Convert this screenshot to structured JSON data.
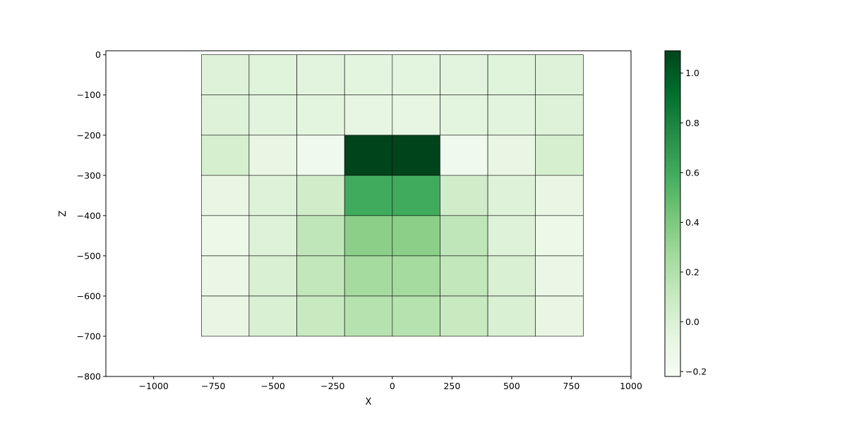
{
  "chart_data": {
    "type": "heatmap",
    "title": "",
    "xlabel": "X",
    "ylabel": "Z",
    "xlim": [
      -1200,
      1000
    ],
    "ylim": [
      -800,
      10
    ],
    "grid": false,
    "x_edges": [
      -800,
      -600,
      -400,
      -200,
      0,
      200,
      400,
      600,
      800
    ],
    "z_edges": [
      0,
      -100,
      -200,
      -300,
      -400,
      -500,
      -600,
      -700
    ],
    "x_ticks": [
      -1000,
      -750,
      -500,
      -250,
      0,
      250,
      500,
      750,
      1000
    ],
    "x_tick_labels": [
      "−1000",
      "−750",
      "−500",
      "−250",
      "0",
      "250",
      "500",
      "750",
      "1000"
    ],
    "y_ticks": [
      0,
      -100,
      -200,
      -300,
      -400,
      -500,
      -600,
      -700,
      -800
    ],
    "y_tick_labels": [
      "0",
      "−100",
      "−200",
      "−300",
      "−400",
      "−500",
      "−600",
      "−700",
      "−800"
    ],
    "values": [
      [
        -0.02,
        -0.03,
        -0.04,
        -0.05,
        -0.05,
        -0.04,
        -0.03,
        -0.02
      ],
      [
        -0.02,
        -0.04,
        -0.05,
        -0.07,
        -0.07,
        -0.05,
        -0.04,
        -0.02
      ],
      [
        0.03,
        -0.09,
        -0.16,
        1.09,
        1.09,
        -0.16,
        -0.09,
        0.03
      ],
      [
        -0.08,
        -0.02,
        0.06,
        0.6,
        0.6,
        0.06,
        -0.02,
        -0.08
      ],
      [
        -0.12,
        -0.02,
        0.14,
        0.35,
        0.35,
        0.14,
        -0.02,
        -0.12
      ],
      [
        -0.1,
        0.01,
        0.13,
        0.25,
        0.25,
        0.13,
        0.01,
        -0.1
      ],
      [
        -0.08,
        0.01,
        0.1,
        0.18,
        0.18,
        0.1,
        0.01,
        -0.08
      ]
    ],
    "colormap": "Greens",
    "colorbar": {
      "vmin": -0.22,
      "vmax": 1.09,
      "ticks": [
        -0.2,
        0.0,
        0.2,
        0.4,
        0.6,
        0.8,
        1.0
      ],
      "tick_labels": [
        "−0.2",
        "0.0",
        "0.2",
        "0.4",
        "0.6",
        "0.8",
        "1.0"
      ]
    }
  }
}
